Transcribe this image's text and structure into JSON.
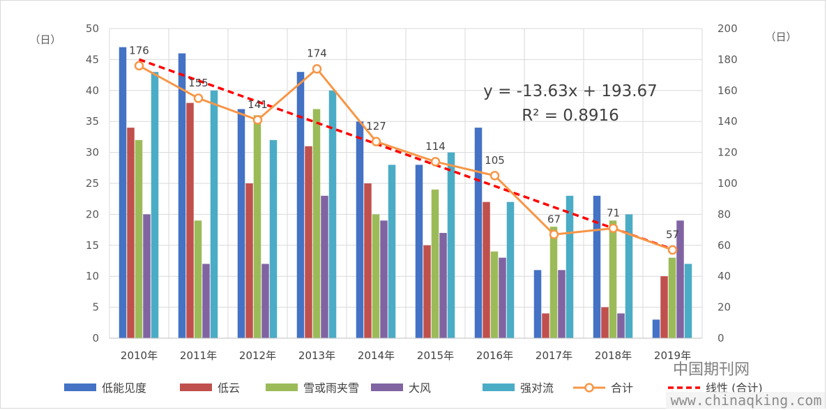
{
  "chart_data": {
    "type": "bar",
    "categories": [
      "2010年",
      "2011年",
      "2012年",
      "2013年",
      "2014年",
      "2015年",
      "2016年",
      "2017年",
      "2018年",
      "2019年"
    ],
    "series": [
      {
        "name": "低能见度",
        "axis": "left",
        "color": "#4472c4",
        "values": [
          47,
          46,
          37,
          43,
          35,
          28,
          34,
          11,
          23,
          3
        ]
      },
      {
        "name": "低云",
        "axis": "left",
        "color": "#c0504d",
        "values": [
          34,
          38,
          25,
          31,
          25,
          15,
          22,
          4,
          5,
          10
        ]
      },
      {
        "name": "雪或雨夹雪",
        "axis": "left",
        "color": "#9bbb59",
        "values": [
          32,
          19,
          36,
          37,
          20,
          24,
          14,
          18,
          19,
          13
        ]
      },
      {
        "name": "大风",
        "axis": "left",
        "color": "#8064a2",
        "values": [
          20,
          12,
          12,
          23,
          19,
          17,
          13,
          11,
          4,
          19
        ]
      },
      {
        "name": "强对流",
        "axis": "left",
        "color": "#4bacc6",
        "values": [
          43,
          40,
          32,
          40,
          28,
          30,
          22,
          23,
          20,
          12
        ]
      },
      {
        "name": "合计",
        "axis": "right",
        "type": "line",
        "color": "#f79646",
        "values": [
          176,
          155,
          141,
          174,
          127,
          114,
          105,
          67,
          71,
          57
        ]
      }
    ],
    "trendline": {
      "name": "线性 (合计)",
      "axis": "right",
      "color": "#ff0000",
      "slope": -13.63,
      "intercept": 193.67,
      "equation": "y = -13.63x + 193.67",
      "r2_label": "R² = 0.8916"
    },
    "left_axis": {
      "unit": "（日）",
      "min": 0,
      "max": 50,
      "step": 5
    },
    "right_axis": {
      "unit": "（日）",
      "min": 0,
      "max": 200,
      "step": 20
    },
    "grid": true,
    "legend_position": "bottom"
  },
  "watermark": {
    "name": "中国期刊网",
    "url": "www.chinaqking.com"
  }
}
